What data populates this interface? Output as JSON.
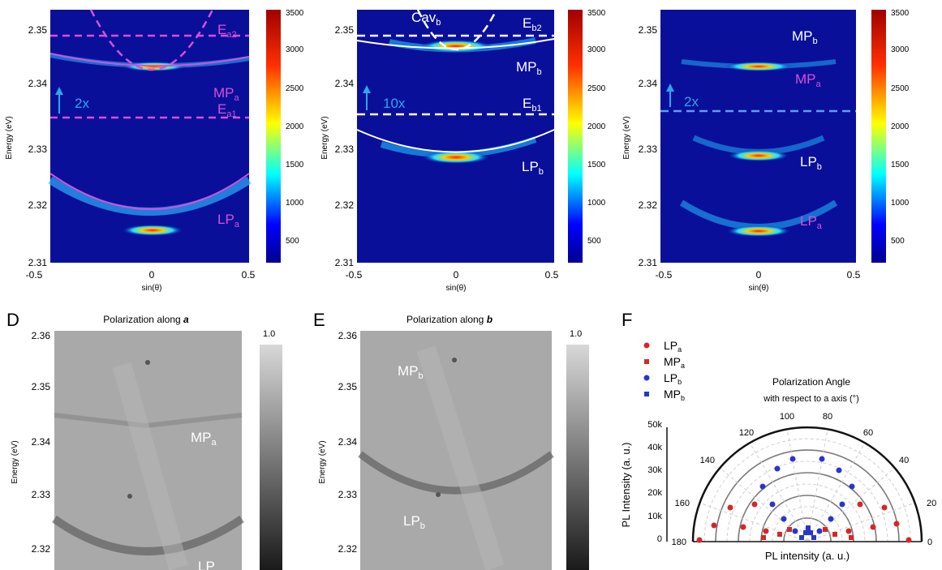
{
  "panels": {
    "A": {
      "y_axis_label": "Energy (eV)",
      "x_axis_label": "sin(θ)",
      "x_ticks": [
        "-0.5",
        "0",
        "0.5"
      ],
      "y_ticks": [
        "2.35",
        "2.34",
        "2.33",
        "2.32",
        "2.31"
      ],
      "labels": {
        "Ea2": "E",
        "Ea2_sub": "a2",
        "MPa": "MP",
        "MPa_sub": "a",
        "Ea1": "E",
        "Ea1_sub": "a1",
        "LPa": "LP",
        "LPa_sub": "a",
        "scale": "2x"
      },
      "colorbar_ticks": [
        "3500",
        "3000",
        "2500",
        "2000",
        "1500",
        "1000",
        "500"
      ]
    },
    "B": {
      "y_axis_label": "Energy (eV)",
      "x_axis_label": "sin(θ)",
      "x_ticks": [
        "-0.5",
        "0",
        "0.5"
      ],
      "y_ticks": [
        "2.35",
        "2.34",
        "2.33",
        "2.32",
        "2.31"
      ],
      "labels": {
        "Cav": "Cav",
        "Cav_sub": "b",
        "Eb2": "E",
        "Eb2_sub": "b2",
        "MPb": "MP",
        "MPb_sub": "b",
        "Eb1": "E",
        "Eb1_sub": "b1",
        "LPb": "LP",
        "LPb_sub": "b",
        "scale": "10x"
      },
      "colorbar_ticks": [
        "3500",
        "3000",
        "2500",
        "2000",
        "1500",
        "1000",
        "500"
      ]
    },
    "C": {
      "y_axis_label": "Energy (eV)",
      "x_axis_label": "sin(θ)",
      "x_ticks": [
        "-0.5",
        "0",
        "0.5"
      ],
      "y_ticks": [
        "2.35",
        "2.34",
        "2.33",
        "2.32",
        "2.31"
      ],
      "labels": {
        "MPb": "MP",
        "MPb_sub": "b",
        "MPa": "MP",
        "MPa_sub": "a",
        "LPb": "LP",
        "LPb_sub": "b",
        "LPa": "LP",
        "LPa_sub": "a",
        "scale": "2x"
      },
      "colorbar_ticks": [
        "3500",
        "3000",
        "2500",
        "2000",
        "1500",
        "1000",
        "500"
      ]
    },
    "D": {
      "letter": "D",
      "title_prefix": "Polarization along ",
      "title_axis": "a",
      "y_axis_label": "Energy (eV)",
      "y_ticks": [
        "2.36",
        "2.35",
        "2.34",
        "2.33",
        "2.32"
      ],
      "labels": {
        "MPa": "MP",
        "MPa_sub": "a",
        "LP": "LP"
      },
      "colorbar_top": "1.0"
    },
    "E": {
      "letter": "E",
      "title_prefix": "Polarization along ",
      "title_axis": "b",
      "y_axis_label": "Energy (eV)",
      "y_ticks": [
        "2.36",
        "2.35",
        "2.34",
        "2.33",
        "2.32"
      ],
      "labels": {
        "MPb": "MP",
        "MPb_sub": "b",
        "LPb": "LP",
        "LPb_sub": "b"
      },
      "colorbar_top": "1.0"
    },
    "F": {
      "letter": "F",
      "legend": [
        {
          "text": "LP",
          "sub": "a",
          "color": "#d62728",
          "marker": "circle"
        },
        {
          "text": "MP",
          "sub": "a",
          "color": "#d62728",
          "marker": "square"
        },
        {
          "text": "LP",
          "sub": "b",
          "color": "#2b35c8",
          "marker": "circle"
        },
        {
          "text": "MP",
          "sub": "b",
          "color": "#2b35c8",
          "marker": "square"
        }
      ],
      "title_line1": "Polarization Angle",
      "title_line2": "with respect to a axis (°)",
      "y_axis_label": "PL Intensity (a. u.)",
      "x_axis_label": "PL intensity (a. u.)",
      "y_ticks": [
        "50k",
        "40k",
        "30k",
        "20k",
        "10k",
        "0"
      ],
      "angle_ticks": [
        "180",
        "160",
        "140",
        "120",
        "100",
        "80",
        "60",
        "40",
        "20",
        "0"
      ]
    }
  },
  "colors": {
    "heatmap_bg": "#0a0f9a",
    "magenta": "#d84fd6",
    "arrow_blue": "#2ea6e8",
    "gray_bg": "#a9a9a9"
  }
}
